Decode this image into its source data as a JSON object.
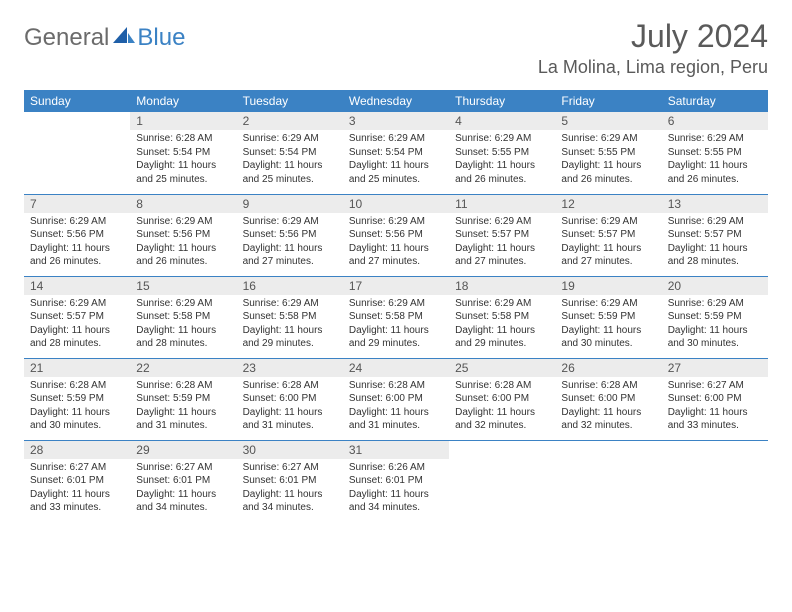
{
  "logo": {
    "general": "General",
    "blue": "Blue"
  },
  "header": {
    "month": "July 2024",
    "location": "La Molina, Lima region, Peru"
  },
  "daynames": [
    "Sunday",
    "Monday",
    "Tuesday",
    "Wednesday",
    "Thursday",
    "Friday",
    "Saturday"
  ],
  "weeks": [
    [
      {
        "num": "",
        "sunrise": "",
        "sunset": "",
        "daylight": ""
      },
      {
        "num": "1",
        "sunrise": "Sunrise: 6:28 AM",
        "sunset": "Sunset: 5:54 PM",
        "daylight": "Daylight: 11 hours and 25 minutes."
      },
      {
        "num": "2",
        "sunrise": "Sunrise: 6:29 AM",
        "sunset": "Sunset: 5:54 PM",
        "daylight": "Daylight: 11 hours and 25 minutes."
      },
      {
        "num": "3",
        "sunrise": "Sunrise: 6:29 AM",
        "sunset": "Sunset: 5:54 PM",
        "daylight": "Daylight: 11 hours and 25 minutes."
      },
      {
        "num": "4",
        "sunrise": "Sunrise: 6:29 AM",
        "sunset": "Sunset: 5:55 PM",
        "daylight": "Daylight: 11 hours and 26 minutes."
      },
      {
        "num": "5",
        "sunrise": "Sunrise: 6:29 AM",
        "sunset": "Sunset: 5:55 PM",
        "daylight": "Daylight: 11 hours and 26 minutes."
      },
      {
        "num": "6",
        "sunrise": "Sunrise: 6:29 AM",
        "sunset": "Sunset: 5:55 PM",
        "daylight": "Daylight: 11 hours and 26 minutes."
      }
    ],
    [
      {
        "num": "7",
        "sunrise": "Sunrise: 6:29 AM",
        "sunset": "Sunset: 5:56 PM",
        "daylight": "Daylight: 11 hours and 26 minutes."
      },
      {
        "num": "8",
        "sunrise": "Sunrise: 6:29 AM",
        "sunset": "Sunset: 5:56 PM",
        "daylight": "Daylight: 11 hours and 26 minutes."
      },
      {
        "num": "9",
        "sunrise": "Sunrise: 6:29 AM",
        "sunset": "Sunset: 5:56 PM",
        "daylight": "Daylight: 11 hours and 27 minutes."
      },
      {
        "num": "10",
        "sunrise": "Sunrise: 6:29 AM",
        "sunset": "Sunset: 5:56 PM",
        "daylight": "Daylight: 11 hours and 27 minutes."
      },
      {
        "num": "11",
        "sunrise": "Sunrise: 6:29 AM",
        "sunset": "Sunset: 5:57 PM",
        "daylight": "Daylight: 11 hours and 27 minutes."
      },
      {
        "num": "12",
        "sunrise": "Sunrise: 6:29 AM",
        "sunset": "Sunset: 5:57 PM",
        "daylight": "Daylight: 11 hours and 27 minutes."
      },
      {
        "num": "13",
        "sunrise": "Sunrise: 6:29 AM",
        "sunset": "Sunset: 5:57 PM",
        "daylight": "Daylight: 11 hours and 28 minutes."
      }
    ],
    [
      {
        "num": "14",
        "sunrise": "Sunrise: 6:29 AM",
        "sunset": "Sunset: 5:57 PM",
        "daylight": "Daylight: 11 hours and 28 minutes."
      },
      {
        "num": "15",
        "sunrise": "Sunrise: 6:29 AM",
        "sunset": "Sunset: 5:58 PM",
        "daylight": "Daylight: 11 hours and 28 minutes."
      },
      {
        "num": "16",
        "sunrise": "Sunrise: 6:29 AM",
        "sunset": "Sunset: 5:58 PM",
        "daylight": "Daylight: 11 hours and 29 minutes."
      },
      {
        "num": "17",
        "sunrise": "Sunrise: 6:29 AM",
        "sunset": "Sunset: 5:58 PM",
        "daylight": "Daylight: 11 hours and 29 minutes."
      },
      {
        "num": "18",
        "sunrise": "Sunrise: 6:29 AM",
        "sunset": "Sunset: 5:58 PM",
        "daylight": "Daylight: 11 hours and 29 minutes."
      },
      {
        "num": "19",
        "sunrise": "Sunrise: 6:29 AM",
        "sunset": "Sunset: 5:59 PM",
        "daylight": "Daylight: 11 hours and 30 minutes."
      },
      {
        "num": "20",
        "sunrise": "Sunrise: 6:29 AM",
        "sunset": "Sunset: 5:59 PM",
        "daylight": "Daylight: 11 hours and 30 minutes."
      }
    ],
    [
      {
        "num": "21",
        "sunrise": "Sunrise: 6:28 AM",
        "sunset": "Sunset: 5:59 PM",
        "daylight": "Daylight: 11 hours and 30 minutes."
      },
      {
        "num": "22",
        "sunrise": "Sunrise: 6:28 AM",
        "sunset": "Sunset: 5:59 PM",
        "daylight": "Daylight: 11 hours and 31 minutes."
      },
      {
        "num": "23",
        "sunrise": "Sunrise: 6:28 AM",
        "sunset": "Sunset: 6:00 PM",
        "daylight": "Daylight: 11 hours and 31 minutes."
      },
      {
        "num": "24",
        "sunrise": "Sunrise: 6:28 AM",
        "sunset": "Sunset: 6:00 PM",
        "daylight": "Daylight: 11 hours and 31 minutes."
      },
      {
        "num": "25",
        "sunrise": "Sunrise: 6:28 AM",
        "sunset": "Sunset: 6:00 PM",
        "daylight": "Daylight: 11 hours and 32 minutes."
      },
      {
        "num": "26",
        "sunrise": "Sunrise: 6:28 AM",
        "sunset": "Sunset: 6:00 PM",
        "daylight": "Daylight: 11 hours and 32 minutes."
      },
      {
        "num": "27",
        "sunrise": "Sunrise: 6:27 AM",
        "sunset": "Sunset: 6:00 PM",
        "daylight": "Daylight: 11 hours and 33 minutes."
      }
    ],
    [
      {
        "num": "28",
        "sunrise": "Sunrise: 6:27 AM",
        "sunset": "Sunset: 6:01 PM",
        "daylight": "Daylight: 11 hours and 33 minutes."
      },
      {
        "num": "29",
        "sunrise": "Sunrise: 6:27 AM",
        "sunset": "Sunset: 6:01 PM",
        "daylight": "Daylight: 11 hours and 34 minutes."
      },
      {
        "num": "30",
        "sunrise": "Sunrise: 6:27 AM",
        "sunset": "Sunset: 6:01 PM",
        "daylight": "Daylight: 11 hours and 34 minutes."
      },
      {
        "num": "31",
        "sunrise": "Sunrise: 6:26 AM",
        "sunset": "Sunset: 6:01 PM",
        "daylight": "Daylight: 11 hours and 34 minutes."
      },
      {
        "num": "",
        "sunrise": "",
        "sunset": "",
        "daylight": ""
      },
      {
        "num": "",
        "sunrise": "",
        "sunset": "",
        "daylight": ""
      },
      {
        "num": "",
        "sunrise": "",
        "sunset": "",
        "daylight": ""
      }
    ]
  ],
  "colors": {
    "header_bg": "#3b82c4",
    "daynum_bg": "#ececec",
    "row_border": "#3b82c4"
  }
}
